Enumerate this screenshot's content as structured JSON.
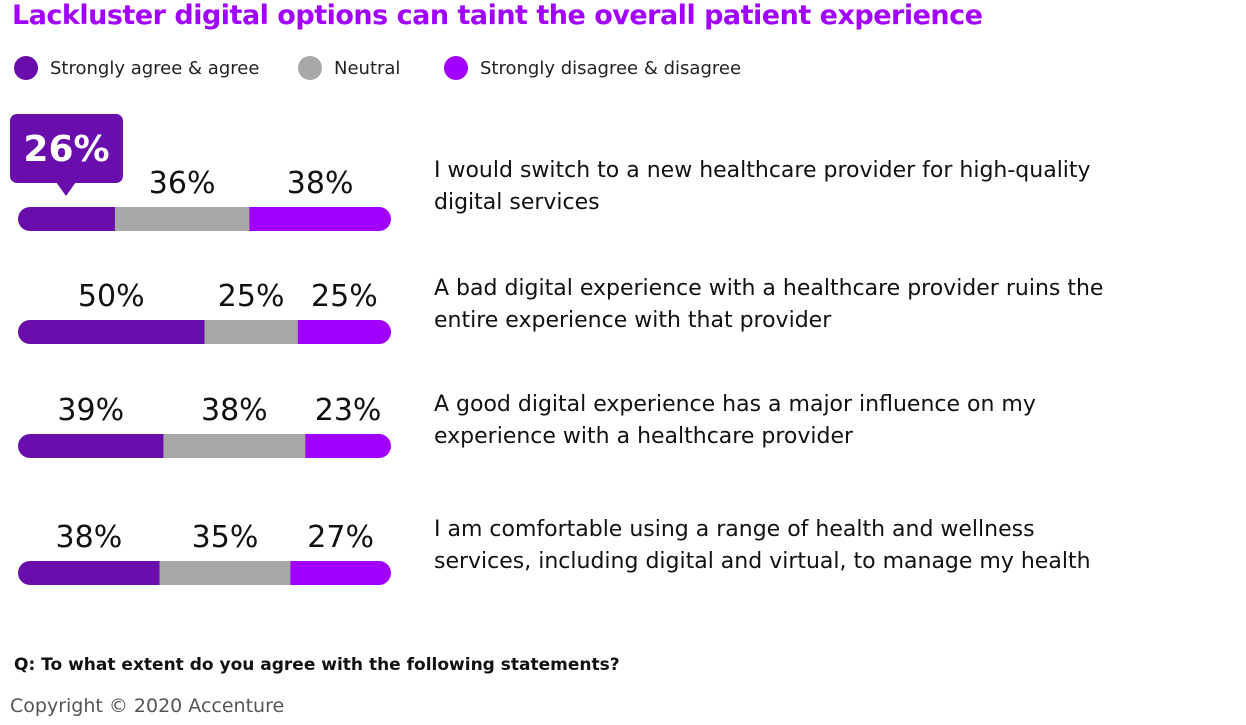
{
  "colors": {
    "title": "#a100ff",
    "agree": "#6a0dad",
    "neutral": "#a8a8a8",
    "disagree": "#a100ff",
    "callout": "#6a0dad"
  },
  "chart_data": {
    "type": "bar",
    "orientation": "horizontal",
    "stacked": true,
    "title": "Lackluster digital options can taint the overall patient experience",
    "legend": [
      "Strongly agree & agree",
      "Neutral",
      "Strongly disagree & disagree"
    ],
    "categories": [
      "I would switch to a new healthcare provider for high-quality digital services",
      "A bad digital experience with a healthcare provider ruins the entire experience with that provider",
      "A good digital experience has a major influence on my experience with a healthcare provider",
      "I am comfortable using a range of health and wellness services, including digital and virtual, to manage my health"
    ],
    "series": [
      {
        "name": "Strongly agree & agree",
        "values": [
          26,
          50,
          39,
          38
        ]
      },
      {
        "name": "Neutral",
        "values": [
          36,
          25,
          38,
          35
        ]
      },
      {
        "name": "Strongly disagree & disagree",
        "values": [
          38,
          25,
          23,
          27
        ]
      }
    ],
    "labels": [
      [
        "26%",
        "36%",
        "38%"
      ],
      [
        "50%",
        "25%",
        "25%"
      ],
      [
        "39%",
        "38%",
        "23%"
      ],
      [
        "38%",
        "35%",
        "27%"
      ]
    ],
    "highlight": {
      "row": 0,
      "series": 0,
      "label": "26%"
    },
    "xlim": [
      0,
      100
    ],
    "note": "Q: To what extent do you agree with the following statements?"
  },
  "footer": {
    "question": "Q: To what extent do you agree with the following statements?",
    "copyright": "Copyright © 2020 Accenture"
  }
}
